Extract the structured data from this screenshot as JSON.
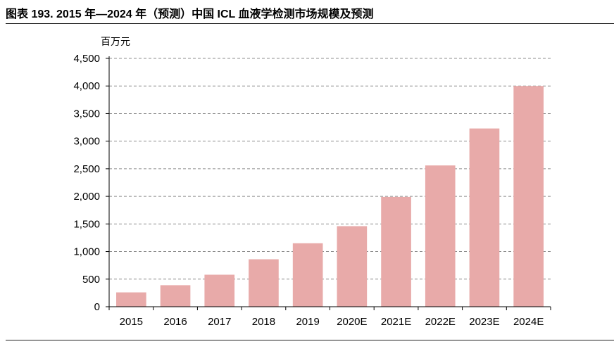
{
  "chart_data": {
    "type": "bar",
    "title": "图表 193. 2015 年—2024 年（预测）中国 ICL 血液学检测市场规模及预测",
    "unit_label": "百万元",
    "categories": [
      "2015",
      "2016",
      "2017",
      "2018",
      "2019",
      "2020E",
      "2021E",
      "2022E",
      "2023E",
      "2024E"
    ],
    "values": [
      260,
      390,
      580,
      860,
      1150,
      1460,
      1990,
      2560,
      3230,
      4000
    ],
    "ylim": [
      0,
      4500
    ],
    "yticks": [
      0,
      500,
      1000,
      1500,
      2000,
      2500,
      3000,
      3500,
      4000,
      4500
    ],
    "ytick_labels": [
      "0",
      "500",
      "1,000",
      "1,500",
      "2,000",
      "2,500",
      "3,000",
      "3,500",
      "4,000",
      "4,500"
    ],
    "grid": true,
    "bar_color": "#e8aaa9",
    "grid_color": "#8c8c8c",
    "axis_color": "#000000"
  }
}
